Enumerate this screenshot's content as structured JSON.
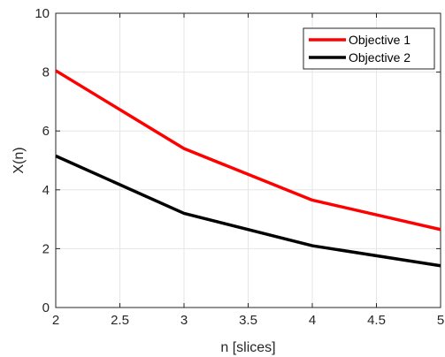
{
  "chart_data": {
    "type": "line",
    "title": "",
    "xlabel": "n [slices]",
    "ylabel": "X(n)",
    "x": [
      2,
      3,
      4,
      5
    ],
    "xlim": [
      2,
      5
    ],
    "ylim": [
      0,
      10
    ],
    "xticks": [
      "2",
      "2.5",
      "3",
      "3.5",
      "4",
      "4.5",
      "5"
    ],
    "yticks": [
      "0",
      "2",
      "4",
      "6",
      "8",
      "10"
    ],
    "grid": true,
    "legend_position": "top-right",
    "series": [
      {
        "name": "Objective 1",
        "color": "#ff0000",
        "values": [
          8.05,
          5.4,
          3.65,
          2.65
        ]
      },
      {
        "name": "Objective 2",
        "color": "#000000",
        "values": [
          5.15,
          3.2,
          2.1,
          1.42
        ]
      }
    ]
  }
}
